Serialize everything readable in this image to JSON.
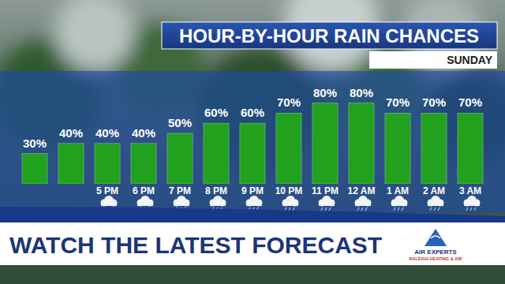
{
  "chart_data": {
    "type": "bar",
    "title": "HOUR-BY-HOUR RAIN CHANCES",
    "subtitle": "SUNDAY",
    "categories": [
      null,
      null,
      "5 PM",
      "6 PM",
      "7 PM",
      "8 PM",
      "9 PM",
      "10 PM",
      "11 PM",
      "12 AM",
      "1 AM",
      "2 AM",
      "3 AM"
    ],
    "values": [
      30,
      40,
      40,
      40,
      50,
      60,
      60,
      70,
      80,
      80,
      70,
      70,
      70
    ],
    "value_labels": [
      "30%",
      "40%",
      "40%",
      "40%",
      "50%",
      "60%",
      "60%",
      "70%",
      "80%",
      "80%",
      "70%",
      "70%",
      "70%"
    ],
    "color": "#22a11e",
    "ylim": [
      0,
      100
    ],
    "data_labels": true,
    "tick_labels": "x"
  },
  "banner": {
    "text": "WATCH THE LATEST FORECAST"
  },
  "logo": {
    "name": "AIR EXPERTS",
    "tagline": "RALEIGH HEATING & AIR"
  }
}
